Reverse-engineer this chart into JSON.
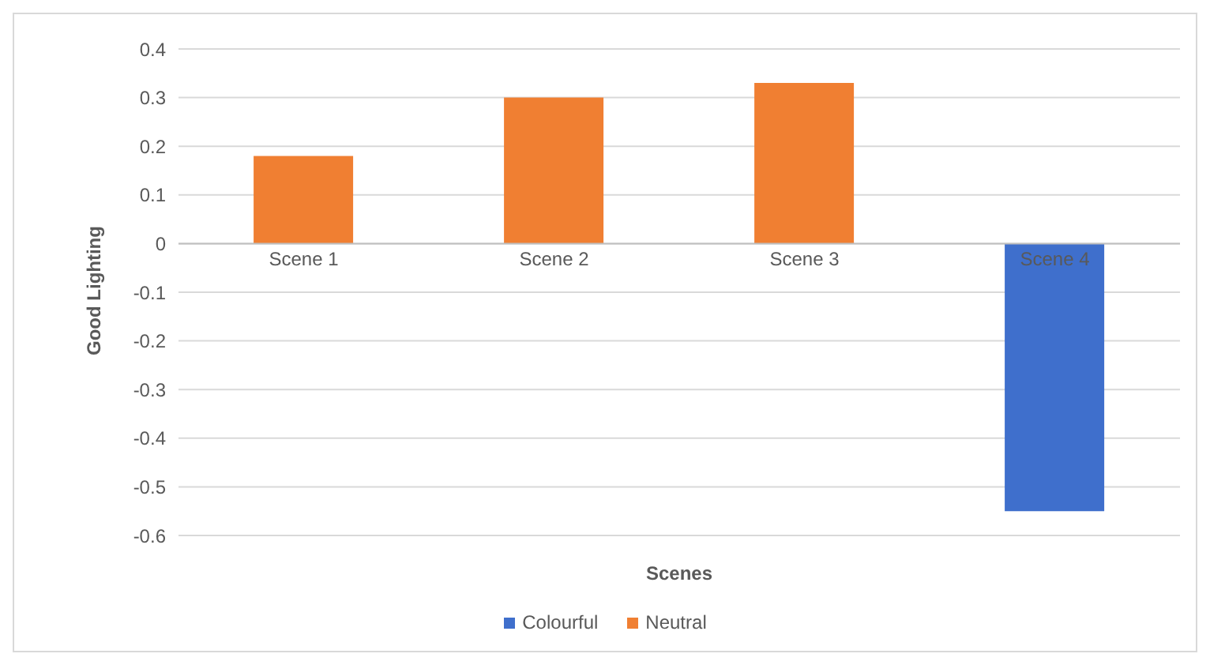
{
  "chart_data": {
    "type": "bar",
    "xlabel": "Scenes",
    "ylabel": "Good Lighting",
    "categories": [
      "Scene 1",
      "Scene 2",
      "Scene 3",
      "Scene 4"
    ],
    "series": [
      {
        "name": "Colourful",
        "color": "#3f6fcc",
        "values": [
          null,
          null,
          null,
          -0.55
        ]
      },
      {
        "name": "Neutral",
        "color": "#f07f32",
        "values": [
          0.18,
          0.3,
          0.33,
          null
        ]
      }
    ],
    "stacked": true,
    "ylim": [
      -0.6,
      0.4
    ],
    "yticks": [
      -0.6,
      -0.5,
      -0.4,
      -0.3,
      -0.2,
      -0.1,
      0,
      0.1,
      0.2,
      0.3,
      0.4
    ],
    "grid": "y",
    "legend": "bottom"
  }
}
